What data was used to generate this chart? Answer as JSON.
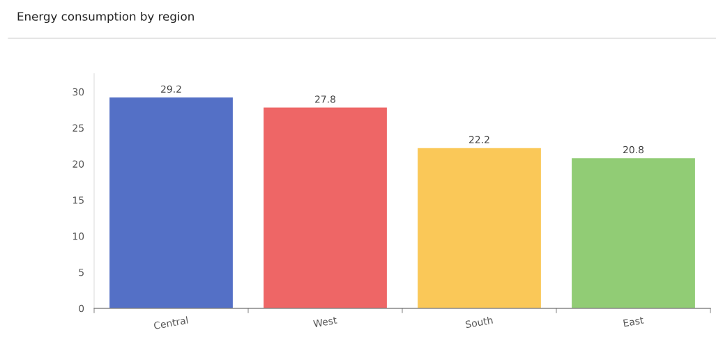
{
  "chart_data": {
    "type": "bar",
    "title": "Energy consumption by region",
    "categories": [
      "Central",
      "West",
      "South",
      "East"
    ],
    "values": [
      29.2,
      27.8,
      22.2,
      20.8
    ],
    "colors": [
      "#5470c6",
      "#ee6666",
      "#fac858",
      "#91cc75"
    ],
    "ylim": [
      0,
      32.5
    ],
    "yticks": [
      0,
      5,
      10,
      15,
      20,
      25,
      30
    ],
    "data_labels": true,
    "grid": false
  }
}
